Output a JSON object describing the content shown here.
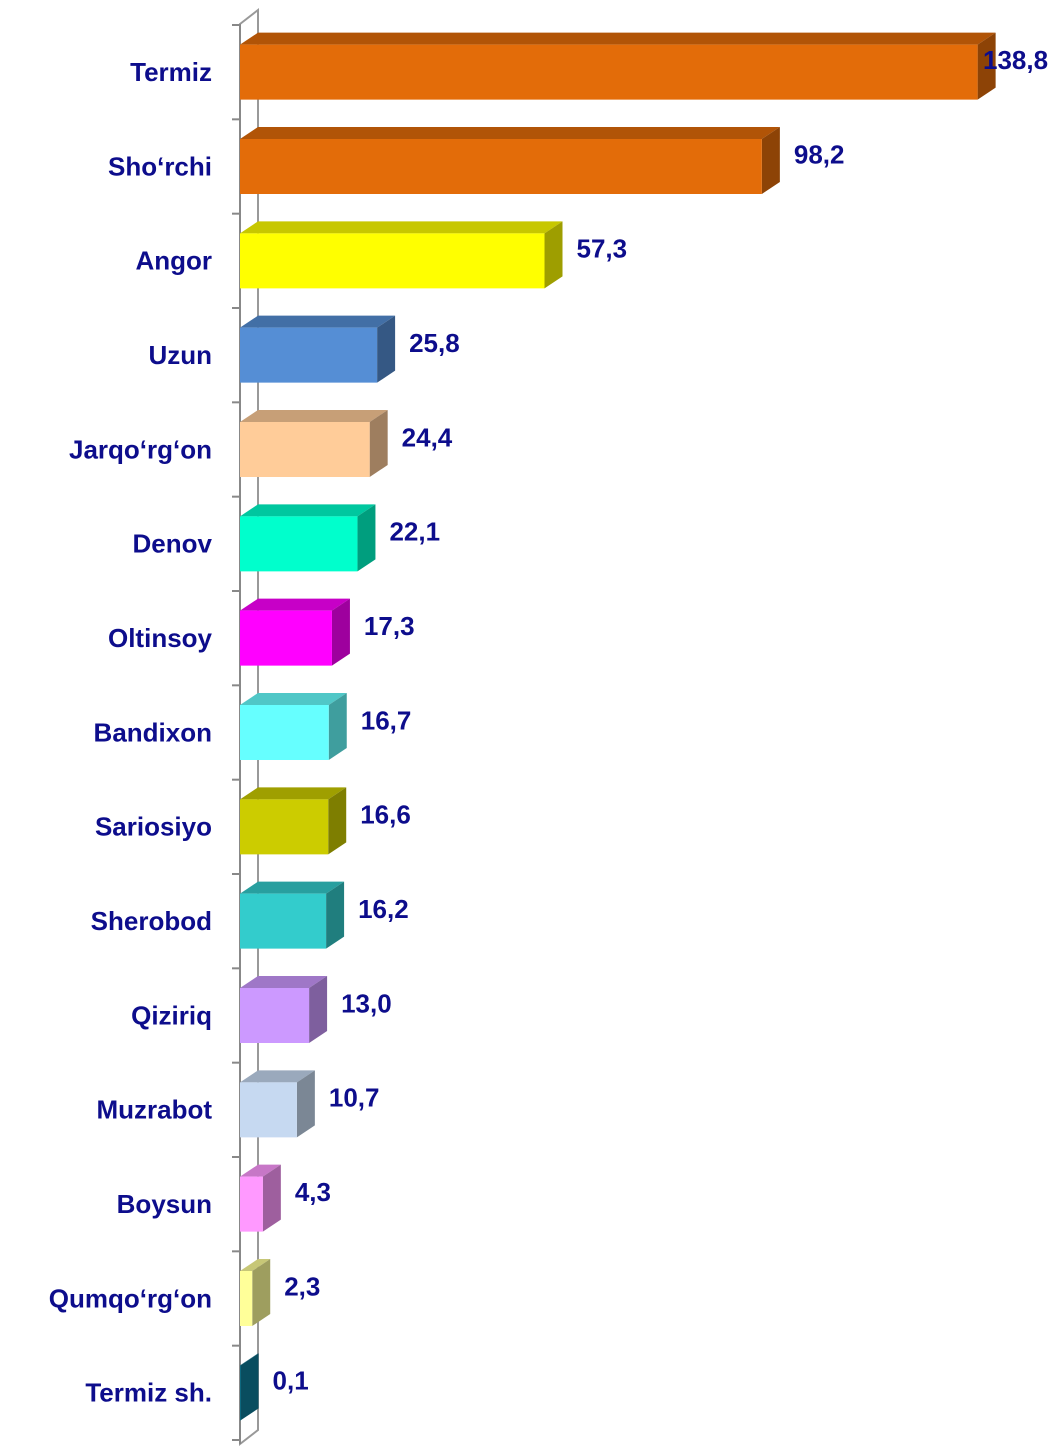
{
  "chart_data": {
    "type": "bar3d_horizontal",
    "categories": [
      "Termiz",
      "Sho‘rchi",
      "Angor",
      "Uzun",
      "Jarqo‘rg‘on",
      "Denov",
      "Oltinsoy",
      "Bandixon",
      "Sariosiyo",
      "Sherobod",
      "Qiziriq",
      "Muzrabot",
      "Boysun",
      "Qumqo‘rg‘on",
      "Termiz sh."
    ],
    "values": [
      138.8,
      98.2,
      57.3,
      25.8,
      24.4,
      22.1,
      17.3,
      16.7,
      16.6,
      16.2,
      13.0,
      10.7,
      4.3,
      2.3,
      0.1
    ],
    "value_labels": [
      "138,8",
      "98,2",
      "57,3",
      "25,8",
      "24,4",
      "22,1",
      "17,3",
      "16,7",
      "16,6",
      "16,2",
      "13,0",
      "10,7",
      "4,3",
      "2,3",
      "0,1"
    ],
    "colors": [
      "#e36c09",
      "#e36c09",
      "#ffff00",
      "#558ed5",
      "#ffcc99",
      "#00ffcc",
      "#ff00ff",
      "#66ffff",
      "#cccc00",
      "#33cccc",
      "#cc99ff",
      "#c6d9f1",
      "#ff99ff",
      "#ffff99",
      "#0e7c99"
    ],
    "xlim": [
      0,
      140
    ]
  }
}
